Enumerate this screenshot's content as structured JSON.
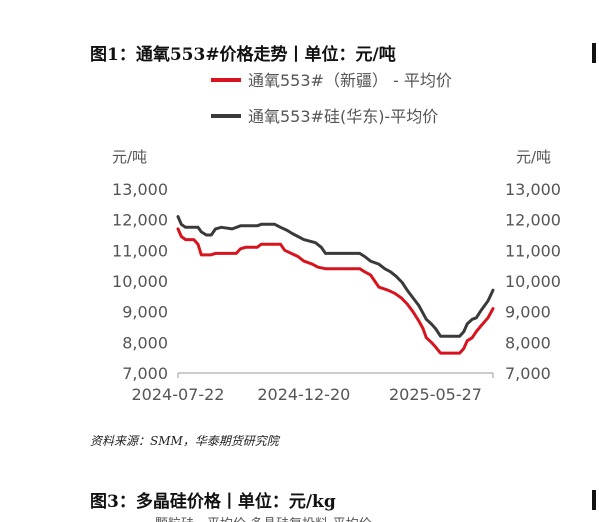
{
  "figure1": {
    "title": "图1：通氧553#价格走势丨单位：元/吨",
    "source": "资料来源：SMM，华泰期货研究院"
  },
  "figure3": {
    "title": "图3：多晶硅价格丨单位：元/kg",
    "cut_caption": "颗粒硅 - 平均价          多晶硅复投料-平均价"
  },
  "colors": {
    "series_xinjiang": "#d7141e",
    "series_huadong": "#3a3a3a",
    "axis_text": "#555555",
    "axis_line": "#999999"
  },
  "chart_data": {
    "type": "line",
    "ylabel_left": "元/吨",
    "ylabel_right": "元/吨",
    "ylim": [
      7000,
      13000
    ],
    "yticks": [
      "13,000",
      "12,000",
      "11,000",
      "10,000",
      "9,000",
      "8,000",
      "7,000"
    ],
    "ytick_values": [
      13000,
      12000,
      11000,
      10000,
      9000,
      8000,
      7000
    ],
    "xlim": [
      "2024-07-22",
      "2025-08-04"
    ],
    "xticks": [
      "2024-07-22",
      "2024-12-20",
      "2025-05-27"
    ],
    "grid": false,
    "legend_placement": "top",
    "series": [
      {
        "name": "通氧553#（新疆） - 平均价",
        "color": "#d7141e",
        "points": [
          [
            "2024-07-22",
            11700
          ],
          [
            "2024-07-26",
            11450
          ],
          [
            "2024-07-31",
            11350
          ],
          [
            "2024-08-10",
            11350
          ],
          [
            "2024-08-15",
            11200
          ],
          [
            "2024-08-19",
            10850
          ],
          [
            "2024-08-30",
            10850
          ],
          [
            "2024-09-05",
            10900
          ],
          [
            "2024-09-30",
            10900
          ],
          [
            "2024-10-05",
            11050
          ],
          [
            "2024-10-11",
            11100
          ],
          [
            "2024-10-25",
            11100
          ],
          [
            "2024-10-30",
            11200
          ],
          [
            "2024-11-22",
            11200
          ],
          [
            "2024-11-27",
            11000
          ],
          [
            "2024-12-05",
            10900
          ],
          [
            "2024-12-13",
            10800
          ],
          [
            "2024-12-20",
            10650
          ],
          [
            "2024-12-30",
            10550
          ],
          [
            "2025-01-06",
            10450
          ],
          [
            "2025-01-15",
            10400
          ],
          [
            "2025-02-25",
            10400
          ],
          [
            "2025-03-03",
            10300
          ],
          [
            "2025-03-10",
            10200
          ],
          [
            "2025-03-15",
            10000
          ],
          [
            "2025-03-20",
            9800
          ],
          [
            "2025-03-31",
            9700
          ],
          [
            "2025-04-08",
            9600
          ],
          [
            "2025-04-16",
            9450
          ],
          [
            "2025-04-23",
            9250
          ],
          [
            "2025-04-30",
            9000
          ],
          [
            "2025-05-07",
            8700
          ],
          [
            "2025-05-12",
            8450
          ],
          [
            "2025-05-16",
            8150
          ],
          [
            "2025-05-22",
            8000
          ],
          [
            "2025-05-27",
            7850
          ],
          [
            "2025-06-02",
            7650
          ],
          [
            "2025-06-25",
            7650
          ],
          [
            "2025-06-30",
            7800
          ],
          [
            "2025-07-04",
            8050
          ],
          [
            "2025-07-10",
            8150
          ],
          [
            "2025-07-15",
            8350
          ],
          [
            "2025-07-21",
            8550
          ],
          [
            "2025-07-29",
            8800
          ],
          [
            "2025-08-04",
            9100
          ]
        ]
      },
      {
        "name": "通氧553#硅(华东)-平均价",
        "color": "#3a3a3a",
        "points": [
          [
            "2024-07-22",
            12100
          ],
          [
            "2024-07-26",
            11850
          ],
          [
            "2024-07-31",
            11750
          ],
          [
            "2024-08-15",
            11750
          ],
          [
            "2024-08-19",
            11600
          ],
          [
            "2024-08-25",
            11500
          ],
          [
            "2024-08-31",
            11500
          ],
          [
            "2024-09-05",
            11700
          ],
          [
            "2024-09-12",
            11750
          ],
          [
            "2024-09-25",
            11700
          ],
          [
            "2024-10-05",
            11800
          ],
          [
            "2024-10-25",
            11800
          ],
          [
            "2024-10-30",
            11850
          ],
          [
            "2024-11-15",
            11850
          ],
          [
            "2024-11-22",
            11750
          ],
          [
            "2024-11-30",
            11650
          ],
          [
            "2024-12-06",
            11550
          ],
          [
            "2024-12-13",
            11450
          ],
          [
            "2024-12-20",
            11350
          ],
          [
            "2025-01-03",
            11250
          ],
          [
            "2025-01-10",
            11100
          ],
          [
            "2025-01-15",
            10900
          ],
          [
            "2025-02-25",
            10900
          ],
          [
            "2025-03-03",
            10800
          ],
          [
            "2025-03-10",
            10650
          ],
          [
            "2025-03-20",
            10550
          ],
          [
            "2025-03-27",
            10400
          ],
          [
            "2025-04-03",
            10300
          ],
          [
            "2025-04-10",
            10150
          ],
          [
            "2025-04-17",
            9950
          ],
          [
            "2025-04-23",
            9700
          ],
          [
            "2025-04-30",
            9450
          ],
          [
            "2025-05-07",
            9200
          ],
          [
            "2025-05-12",
            8950
          ],
          [
            "2025-05-16",
            8750
          ],
          [
            "2025-05-22",
            8600
          ],
          [
            "2025-05-27",
            8450
          ],
          [
            "2025-06-02",
            8200
          ],
          [
            "2025-06-25",
            8200
          ],
          [
            "2025-06-30",
            8350
          ],
          [
            "2025-07-04",
            8600
          ],
          [
            "2025-07-10",
            8750
          ],
          [
            "2025-07-15",
            8800
          ],
          [
            "2025-07-21",
            9050
          ],
          [
            "2025-07-29",
            9350
          ],
          [
            "2025-08-04",
            9700
          ]
        ]
      }
    ]
  }
}
